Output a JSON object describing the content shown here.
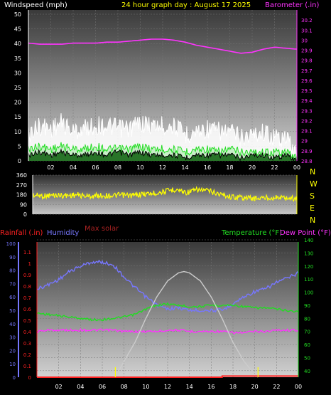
{
  "header": {
    "windspeed_label": "Windspeed (mph)",
    "title": "24 hour graph day : August 17 2025",
    "barometer_label": "Barometer (.in)"
  },
  "colors": {
    "white": "#ffffff",
    "yellow": "#ffff00",
    "magenta": "#ff33ff",
    "green": "#22dd22",
    "pale_green": "#bbeebb",
    "dark_green": "#005500",
    "black": "#000000",
    "blue": "#7777ff",
    "red": "#ff2222",
    "gray": "#cccccc",
    "dark_red": "#aa2222"
  },
  "chart_data": [
    {
      "type": "line",
      "title": "24 hour graph day : August 17 2025",
      "xlabel": "",
      "x_ticks": [
        "02",
        "04",
        "06",
        "08",
        "10",
        "12",
        "14",
        "16",
        "18",
        "20",
        "22",
        "00"
      ],
      "xlim": [
        0,
        24
      ],
      "y_left_label": "Windspeed (mph)",
      "y_left_ticks": [
        0,
        5,
        10,
        15,
        20,
        25,
        30,
        35,
        40,
        45,
        50
      ],
      "ylim_left": [
        0,
        50
      ],
      "y_right_label": "Barometer (.in)",
      "y_right_ticks": [
        28.8,
        28.9,
        29,
        29.1,
        29.2,
        29.3,
        29.4,
        29.5,
        29.6,
        29.7,
        29.8,
        29.9,
        30,
        30.1,
        30.2
      ],
      "ylim_right": [
        28.8,
        30.3
      ],
      "series": [
        {
          "name": "Barometer (.in)",
          "axis": "right",
          "color": "magenta",
          "x": [
            0,
            1,
            2,
            3,
            4,
            5,
            6,
            7,
            8,
            9,
            10,
            11,
            12,
            13,
            14,
            15,
            16,
            17,
            18,
            19,
            20,
            21,
            22,
            23,
            24
          ],
          "y": [
            29.97,
            29.96,
            29.96,
            29.96,
            29.97,
            29.97,
            29.97,
            29.98,
            29.98,
            29.99,
            30.0,
            30.01,
            30.01,
            30.0,
            29.98,
            29.95,
            29.93,
            29.91,
            29.89,
            29.87,
            29.88,
            29.91,
            29.93,
            29.92,
            29.91
          ]
        },
        {
          "name": "Wind gust",
          "axis": "left",
          "color": "white",
          "x": [
            0,
            1,
            2,
            3,
            4,
            5,
            6,
            7,
            8,
            9,
            10,
            11,
            12,
            13,
            14,
            15,
            16,
            17,
            18,
            19,
            20,
            21,
            22,
            23,
            24
          ],
          "y": [
            9,
            12,
            11,
            13,
            10,
            11,
            12,
            12,
            11,
            11,
            13,
            12,
            12,
            12,
            9,
            10,
            11,
            10,
            10,
            8,
            9,
            10,
            8,
            8,
            2
          ]
        },
        {
          "name": "Wind average",
          "axis": "left",
          "color": "green",
          "x": [
            0,
            1,
            2,
            3,
            4,
            5,
            6,
            7,
            8,
            9,
            10,
            11,
            12,
            13,
            14,
            15,
            16,
            17,
            18,
            19,
            20,
            21,
            22,
            23,
            24
          ],
          "y": [
            4,
            5,
            4,
            5,
            4,
            4,
            5,
            4,
            4,
            4,
            5,
            4,
            4,
            4,
            3,
            4,
            4,
            3,
            4,
            3,
            3,
            3,
            3,
            3,
            1
          ]
        },
        {
          "name": "Wind speed",
          "axis": "left",
          "color": "black",
          "x": [
            0,
            1,
            2,
            3,
            4,
            5,
            6,
            7,
            8,
            9,
            10,
            11,
            12,
            13,
            14,
            15,
            16,
            17,
            18,
            19,
            20,
            21,
            22,
            23,
            24
          ],
          "y": [
            2,
            3,
            2,
            3,
            2,
            2,
            3,
            2,
            3,
            2,
            3,
            2,
            2,
            2,
            1,
            2,
            2,
            2,
            2,
            1,
            2,
            2,
            1,
            2,
            0
          ]
        }
      ]
    },
    {
      "type": "line",
      "title": "",
      "x_ticks": [],
      "xlim": [
        0,
        24
      ],
      "y_left_ticks": [
        0,
        90,
        180,
        270,
        360
      ],
      "ylim": [
        0,
        360
      ],
      "y_right_ticks": [
        "N",
        "W",
        "S",
        "E",
        "N"
      ],
      "series": [
        {
          "name": "Wind direction",
          "color": "yellow",
          "x": [
            0,
            1,
            2,
            3,
            4,
            5,
            6,
            7,
            8,
            9,
            10,
            11,
            12,
            13,
            14,
            15,
            16,
            17,
            18,
            19,
            20,
            21,
            22,
            23,
            24
          ],
          "y": [
            175,
            168,
            175,
            172,
            178,
            165,
            172,
            170,
            175,
            172,
            185,
            192,
            210,
            230,
            200,
            225,
            215,
            185,
            160,
            155,
            145,
            150,
            155,
            150,
            145
          ]
        }
      ]
    },
    {
      "type": "line",
      "title": "",
      "annotation": "Max solar",
      "x_ticks": [
        "02",
        "04",
        "06",
        "08",
        "10",
        "12",
        "14",
        "16",
        "18",
        "20",
        "22",
        "00"
      ],
      "xlim": [
        0,
        24
      ],
      "left_labels": [
        "Rainfall (.in)",
        "Humidity"
      ],
      "right_labels": [
        "Temperature (°F)",
        "Dew Point (°F)"
      ],
      "humidity_ticks": [
        0,
        10,
        20,
        30,
        40,
        50,
        60,
        70,
        80,
        90,
        100
      ],
      "ylim_humidity": [
        0,
        100
      ],
      "rain_ticks": [
        0,
        0.1,
        0.2,
        0.3,
        0.4,
        0.5,
        0.6,
        0.7,
        0.8,
        0.9,
        1,
        1.1
      ],
      "ylim_rain": [
        0,
        1.1
      ],
      "temp_ticks": [
        40,
        50,
        60,
        70,
        80,
        90,
        100,
        110,
        120,
        130,
        140
      ],
      "ylim_temp": [
        35,
        140
      ],
      "series": [
        {
          "name": "Humidity",
          "axis": "humidity",
          "color": "blue",
          "x": [
            0,
            1,
            2,
            3,
            4,
            5,
            6,
            7,
            8,
            9,
            10,
            11,
            12,
            13,
            14,
            15,
            16,
            17,
            18,
            19,
            20,
            21,
            22,
            23,
            24
          ],
          "y": [
            66,
            69,
            73,
            79,
            83,
            86,
            86,
            84,
            75,
            67,
            60,
            54,
            51,
            52,
            50,
            50,
            50,
            50,
            55,
            60,
            64,
            66,
            71,
            74,
            78
          ]
        },
        {
          "name": "Temperature (°F)",
          "axis": "temp",
          "color": "green",
          "x": [
            0,
            1,
            2,
            3,
            4,
            5,
            6,
            7,
            8,
            9,
            10,
            11,
            12,
            13,
            14,
            15,
            16,
            17,
            18,
            19,
            20,
            21,
            22,
            23,
            24
          ],
          "y": [
            84,
            83,
            82,
            81,
            80,
            79,
            79,
            80,
            81,
            83,
            87,
            90,
            91,
            90,
            89,
            89,
            90,
            90,
            90,
            89,
            88,
            88,
            87,
            86,
            85
          ]
        },
        {
          "name": "Dew Point (°F)",
          "axis": "temp",
          "color": "magenta",
          "x": [
            0,
            1,
            2,
            3,
            4,
            5,
            6,
            7,
            8,
            9,
            10,
            11,
            12,
            13,
            14,
            15,
            16,
            17,
            18,
            19,
            20,
            21,
            22,
            23,
            24
          ],
          "y": [
            70,
            71,
            71,
            71,
            71,
            71,
            71,
            71,
            70,
            70,
            70,
            70,
            71,
            71,
            70,
            70,
            70,
            70,
            69,
            69,
            70,
            70,
            71,
            71,
            71
          ]
        },
        {
          "name": "Max solar",
          "axis": "humidity",
          "color": "gray",
          "x": [
            7.2,
            8,
            9,
            10,
            11,
            12,
            13,
            13.5,
            14,
            15,
            16,
            17,
            18,
            19,
            20,
            20.3
          ],
          "y": [
            0,
            12,
            26,
            44,
            60,
            72,
            78,
            79,
            78,
            72,
            60,
            44,
            26,
            12,
            2,
            0
          ]
        },
        {
          "name": "Rainfall (.in)",
          "axis": "rain",
          "color": "red",
          "x": [
            0,
            17,
            17.01,
            24
          ],
          "y": [
            0,
            0,
            0.01,
            0.01
          ]
        }
      ],
      "markers_x": [
        7.2,
        20.3
      ]
    }
  ]
}
